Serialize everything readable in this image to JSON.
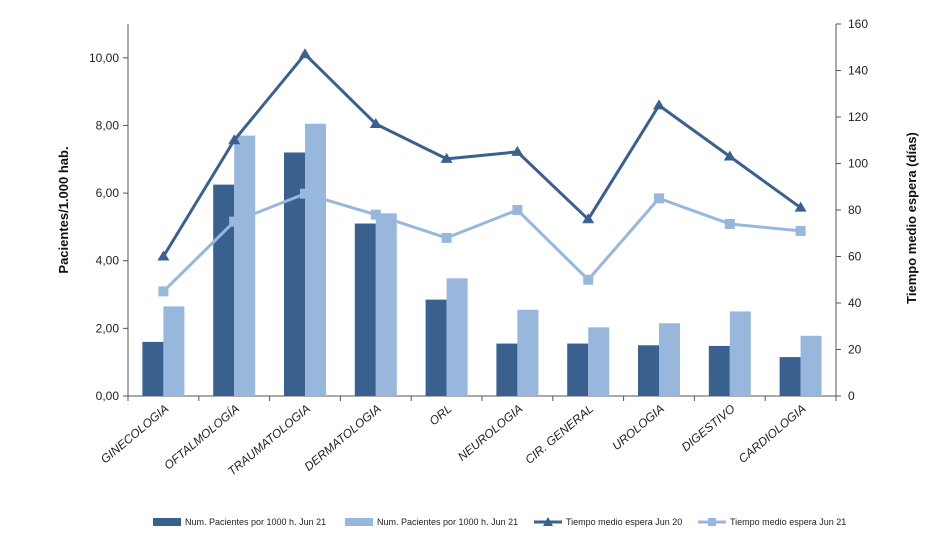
{
  "chart_data": {
    "type": "bar",
    "title": "",
    "categories": [
      "GINECOLOGIA",
      "OFTALMOLOGÍA",
      "TRAUMATOLOGIA",
      "DERMATOLOGIA",
      "ORL",
      "NEUROLOGIA",
      "CIR. GENERAL",
      "UROLOGIA",
      "DIGESTIVO",
      "CARDIOLOGIA"
    ],
    "ylabel": "Pacientes/1.000 hab.",
    "y2label": "Tiempo medio espera (días)",
    "ylim": [
      0,
      11
    ],
    "y2lim": [
      0,
      160
    ],
    "yticks": [
      "0,00",
      "2,00",
      "4,00",
      "6,00",
      "8,00",
      "10,00"
    ],
    "y2ticks": [
      "0",
      "20",
      "40",
      "60",
      "80",
      "100",
      "120",
      "140",
      "160"
    ],
    "series": [
      {
        "name": "Num. Pacientes por 1000 h.  Jun 21",
        "kind": "bar",
        "axis": "left",
        "color": "#3a6090",
        "values": [
          1.6,
          6.25,
          7.2,
          5.1,
          2.85,
          1.55,
          1.55,
          1.5,
          1.48,
          1.15
        ]
      },
      {
        "name": "Num. Pacientes por 1000 h.  Jun 21",
        "kind": "bar",
        "axis": "left",
        "color": "#98b7dc",
        "values": [
          2.65,
          7.7,
          8.05,
          5.4,
          3.48,
          2.55,
          2.03,
          2.15,
          2.5,
          1.78
        ]
      },
      {
        "name": "Tiempo medio espera Jun 20",
        "kind": "line",
        "axis": "right",
        "color": "#3a6090",
        "marker": "triangle",
        "values": [
          60,
          110,
          147,
          117,
          102,
          105,
          76,
          125,
          103,
          81
        ]
      },
      {
        "name": "Tiempo medio espera Jun 21",
        "kind": "line",
        "axis": "right",
        "color": "#98b7dc",
        "marker": "square",
        "values": [
          45,
          75,
          87,
          78,
          68,
          80,
          50,
          85,
          74,
          71
        ]
      }
    ]
  }
}
